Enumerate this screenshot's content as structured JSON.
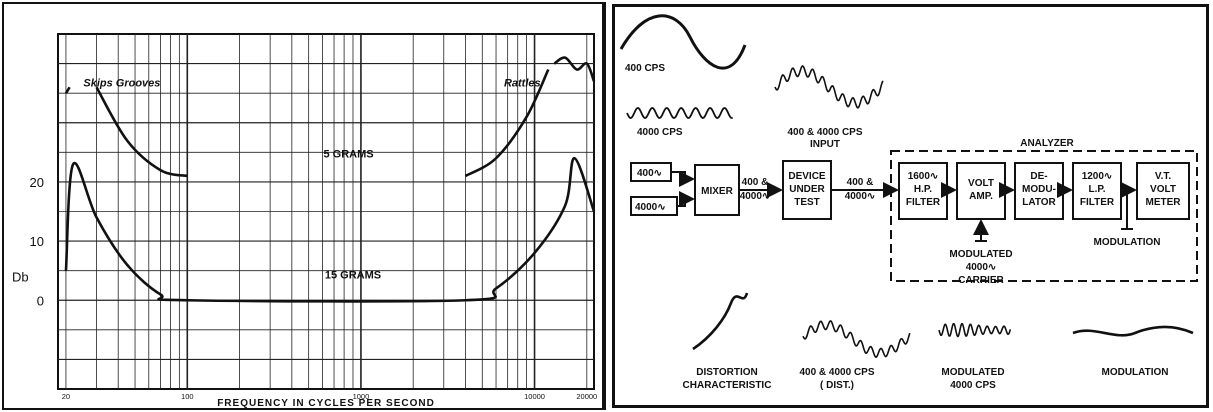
{
  "left": {
    "chart_data": {
      "type": "line",
      "xlabel": "FREQUENCY IN CYCLES PER SECOND",
      "ylabel": "Db",
      "x_scale": "log",
      "xlim": [
        18,
        22000
      ],
      "ylim": [
        -15,
        45
      ],
      "x_tick_labels": [
        "20",
        "100",
        "1000",
        "10000",
        "20000"
      ],
      "y_tick_labels": [
        "0",
        "10",
        "20"
      ],
      "grid": true,
      "annotations": [
        "Skips Grooves",
        "Rattles"
      ],
      "series": [
        {
          "name": "5 GRAMS",
          "segments": [
            {
              "x": [
                20,
                21
              ],
              "y": [
                35,
                36
              ]
            },
            {
              "x": [
                30,
                45,
                70,
                100
              ],
              "y": [
                36,
                27,
                22,
                21
              ]
            },
            {
              "x": [
                4000,
                6000,
                9000,
                12000
              ],
              "y": [
                21,
                24,
                31,
                39
              ]
            },
            {
              "x": [
                13000,
                15000,
                17500,
                20000,
                22000
              ],
              "y": [
                40,
                41,
                39,
                40,
                37
              ]
            }
          ]
        },
        {
          "name": "15 GRAMS",
          "segments": [
            {
              "x": [
                20,
                22,
                30,
                45,
                70,
                100,
                4000,
                6000,
                10000,
                15000,
                17000,
                22000
              ],
              "y": [
                5,
                23,
                14,
                6,
                1,
                0,
                0,
                2,
                8,
                16,
                24,
                15
              ]
            }
          ]
        }
      ]
    }
  },
  "right": {
    "waveform_labels": {
      "w400": "400 CPS",
      "w4000": "4000 CPS",
      "input": [
        "400 & 4000 CPS",
        "INPUT"
      ]
    },
    "sources": [
      "400∿",
      "4000∿"
    ],
    "blocks": {
      "mixer": [
        "MIXER"
      ],
      "device": [
        "DEVICE",
        "UNDER",
        "TEST"
      ],
      "hp": [
        "1600∿",
        "H.P.",
        "FILTER"
      ],
      "volt": [
        "VOLT",
        "AMP."
      ],
      "demod": [
        "DE-",
        "MODU-",
        "LATOR"
      ],
      "lp": [
        "1200∿",
        "L.P.",
        "FILTER"
      ],
      "vt": [
        "V.T.",
        "VOLT",
        "METER"
      ]
    },
    "signal_labels": {
      "after_mixer": [
        "400 &",
        "4000∿"
      ],
      "after_device": [
        "400 &",
        "4000∿"
      ]
    },
    "analyzer_title": "ANALYZER",
    "carrier_label": [
      "MODULATED",
      "4000∿",
      "CARRIER"
    ],
    "modulation_out_label": "MODULATION",
    "bottom_labels": {
      "distortion": [
        "DISTORTION",
        "CHARACTERISTIC"
      ],
      "dist": [
        "400 & 4000 CPS",
        "( DIST.)"
      ],
      "modulated": [
        "MODULATED",
        "4000 CPS"
      ],
      "modulation": "MODULATION"
    }
  }
}
